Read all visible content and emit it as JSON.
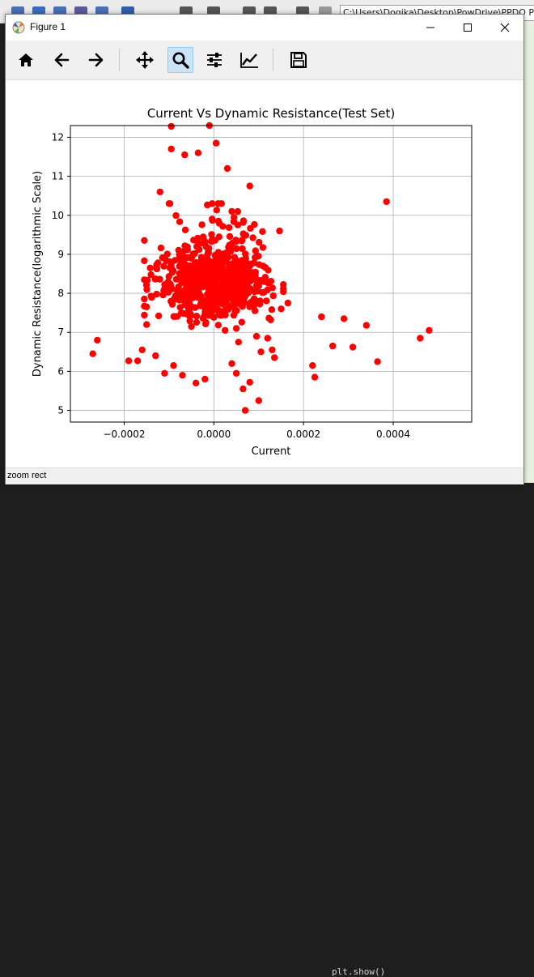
{
  "window": {
    "title": "Figure 1",
    "app_icon": "matplotlib-icon",
    "controls": {
      "minimize": "minimize-icon",
      "maximize": "maximize-icon",
      "close": "close-icon"
    }
  },
  "toolbar": {
    "tools": [
      {
        "name": "home",
        "icon": "home-icon",
        "active": false
      },
      {
        "name": "back",
        "icon": "back-arrow-icon",
        "active": false
      },
      {
        "name": "forward",
        "icon": "forward-arrow-icon",
        "active": false
      },
      {
        "name": "pan",
        "icon": "move-icon",
        "active": false
      },
      {
        "name": "zoom",
        "icon": "zoom-icon",
        "active": true
      },
      {
        "name": "subplots",
        "icon": "sliders-icon",
        "active": false
      },
      {
        "name": "customize",
        "icon": "line-chart-icon",
        "active": false
      },
      {
        "name": "save",
        "icon": "save-icon",
        "active": false
      }
    ]
  },
  "status": {
    "text": "zoom rect"
  },
  "background": {
    "path_text": "C:\\Users\\Dogika\\Desktop\\PowDrive\\PPDO Proje",
    "code_line": "plt.show()",
    "accent": "#4a6fb5"
  },
  "chart_data": {
    "type": "scatter",
    "title": "Current Vs Dynamic Resistance(Test Set)",
    "xlabel": "Current",
    "ylabel": "Dynamic Resistance(logarithmic Scale)",
    "xlim": [
      -0.00032,
      0.000575
    ],
    "ylim": [
      4.7,
      12.3
    ],
    "xticks": [
      -0.0002,
      0.0,
      0.0002,
      0.0004
    ],
    "xtick_labels": [
      "−0.0002",
      "0.0000",
      "0.0002",
      "0.0004"
    ],
    "yticks": [
      5,
      6,
      7,
      8,
      9,
      10,
      11,
      12
    ],
    "ytick_labels": [
      "5",
      "6",
      "7",
      "8",
      "9",
      "10",
      "11",
      "12"
    ],
    "grid": true,
    "marker_color": "#ff0000",
    "marker_radius_note": "filled circles",
    "points": [
      [
        -0.00027,
        6.45
      ],
      [
        -0.00026,
        6.8
      ],
      [
        -0.00019,
        6.27
      ],
      [
        -0.00017,
        6.27
      ],
      [
        -9.5e-05,
        12.28
      ],
      [
        -6.5e-05,
        11.55
      ],
      [
        -3.5e-05,
        11.6
      ],
      [
        -1e-05,
        12.3
      ],
      [
        5e-06,
        11.85
      ],
      [
        -9.5e-05,
        11.7
      ],
      [
        -0.00012,
        10.6
      ],
      [
        -0.0001,
        10.3
      ],
      [
        4e-05,
        10.1
      ],
      [
        3e-05,
        11.2
      ],
      [
        8e-05,
        10.75
      ],
      [
        0.000385,
        10.35
      ],
      [
        0.00022,
        6.15
      ],
      [
        0.000225,
        5.85
      ],
      [
        0.00024,
        7.4
      ],
      [
        0.00029,
        7.35
      ],
      [
        0.000265,
        6.65
      ],
      [
        0.00031,
        6.62
      ],
      [
        0.00034,
        7.18
      ],
      [
        0.000365,
        6.25
      ],
      [
        0.00046,
        6.85
      ],
      [
        0.00048,
        7.05
      ],
      [
        7e-05,
        5.0
      ],
      [
        0.0001,
        5.25
      ],
      [
        -2e-05,
        5.8
      ],
      [
        -4e-05,
        5.7
      ],
      [
        6.5e-05,
        5.55
      ],
      [
        8e-05,
        5.72
      ],
      [
        9.5e-05,
        6.9
      ],
      [
        0.00013,
        6.55
      ],
      [
        0.000135,
        6.35
      ],
      [
        0.00015,
        7.6
      ],
      [
        0.000165,
        7.75
      ],
      [
        -0.00015,
        7.2
      ],
      [
        -0.00016,
        6.55
      ],
      [
        -0.00013,
        6.4
      ],
      [
        -0.00011,
        5.95
      ],
      [
        -9e-05,
        6.15
      ],
      [
        -7e-05,
        5.9
      ],
      [
        4e-05,
        6.2
      ],
      [
        5e-05,
        5.95
      ],
      [
        0.000105,
        6.5
      ],
      [
        0.00012,
        6.85
      ],
      [
        -5e-05,
        7.15
      ],
      [
        2.5e-05,
        7.05
      ],
      [
        5.5e-05,
        6.75
      ]
    ],
    "cluster": {
      "center": [
        0.0,
        8.2
      ],
      "note": "dense cluster of several hundred points between roughly -0.00015 and 0.00015 in x and 7 to 10 in y",
      "count": 650
    }
  }
}
